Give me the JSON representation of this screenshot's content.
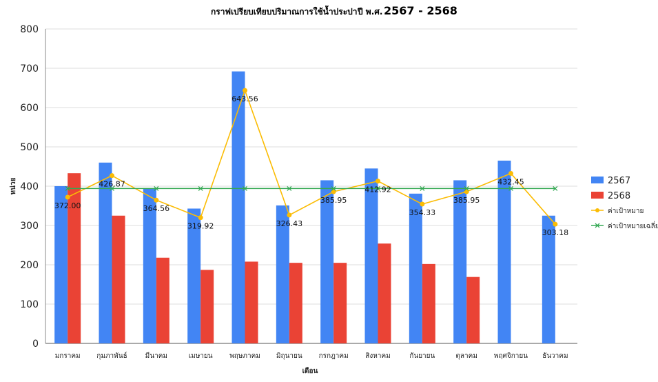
{
  "title": {
    "main": "กราฟเปรียบเทียบปริมาณการใช้น้ำประปา",
    "year_prefix": "ปี พ.ศ.",
    "year_range": "2567 - 2568"
  },
  "chart_data": {
    "type": "bar",
    "categories": [
      "มกราคม",
      "กุมภาพันธ์",
      "มีนาคม",
      "เมษายน",
      "พฤษภาคม",
      "มิถุนายน",
      "กรกฎาคม",
      "สิงหาคม",
      "กันยายน",
      "ตุลาคม",
      "พฤศจิกายน",
      "ธันวาคม"
    ],
    "series": [
      {
        "name": "2567",
        "kind": "bar",
        "color": "#4285f4",
        "values": [
          400,
          460,
          395,
          343,
          692,
          351,
          415,
          445,
          381,
          415,
          465,
          325
        ]
      },
      {
        "name": "2568",
        "kind": "bar",
        "color": "#ea4335",
        "values": [
          433,
          325,
          218,
          187,
          208,
          205,
          205,
          254,
          202,
          169,
          null,
          null
        ]
      },
      {
        "name": "ค่าเป้าหมาย",
        "kind": "line",
        "color": "#fbbc04",
        "marker": "circle",
        "values": [
          372.0,
          426.87,
          364.56,
          319.92,
          643.56,
          326.43,
          385.95,
          412.92,
          354.33,
          385.95,
          432.45,
          303.18
        ],
        "labels": [
          "372.00",
          "426.87",
          "364.56",
          "319.92",
          "643.56",
          "326.43",
          "385.95",
          "412.92",
          "354.33",
          "385.95",
          "432.45",
          "303.18"
        ]
      },
      {
        "name": "ค่าเป้าหมายเฉลี่ย",
        "kind": "line",
        "color": "#34a853",
        "marker": "x",
        "values": [
          394,
          394,
          394,
          394,
          394,
          394,
          394,
          394,
          394,
          394,
          394,
          394
        ]
      }
    ],
    "xlabel": "เดือน",
    "ylabel": "หน่วย",
    "ylim": [
      0,
      800
    ],
    "yticks": [
      "0",
      "100",
      "200",
      "300",
      "400",
      "500",
      "600",
      "700",
      "800"
    ],
    "grid": true,
    "legend_position": "right"
  }
}
